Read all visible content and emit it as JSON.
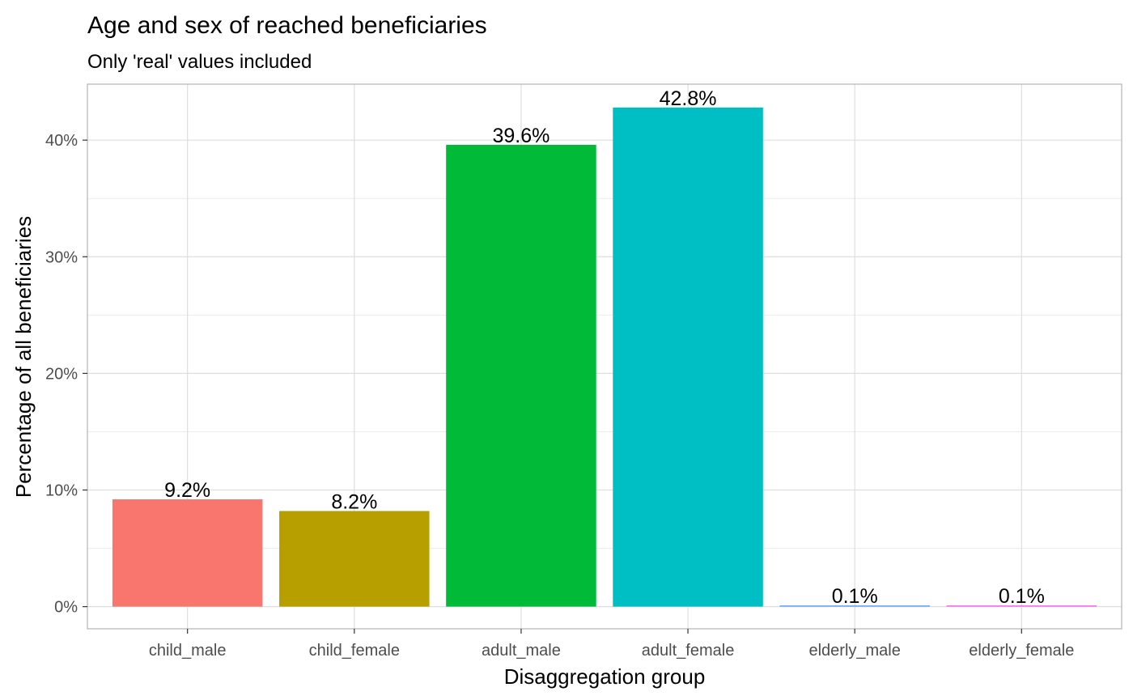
{
  "chart_data": {
    "type": "bar",
    "title": "Age and sex of reached beneficiaries",
    "subtitle": "Only 'real' values included",
    "xlabel": "Disaggregation group",
    "ylabel": "Percentage of all beneficiaries",
    "categories": [
      "child_male",
      "child_female",
      "adult_male",
      "adult_female",
      "elderly_male",
      "elderly_female"
    ],
    "values": [
      9.2,
      8.2,
      39.6,
      42.8,
      0.1,
      0.1
    ],
    "data_labels": [
      "9.2%",
      "8.2%",
      "39.6%",
      "42.8%",
      "0.1%",
      "0.1%"
    ],
    "colors": [
      "#F8766D",
      "#B79F00",
      "#00BA38",
      "#00BFC4",
      "#619CFF",
      "#F564E3"
    ],
    "ylim": [
      -1.9,
      44.8
    ],
    "yticks": [
      0,
      10,
      20,
      30,
      40
    ],
    "ytick_labels": [
      "0%",
      "10%",
      "20%",
      "30%",
      "40%"
    ],
    "grid": true,
    "legend": "none"
  }
}
